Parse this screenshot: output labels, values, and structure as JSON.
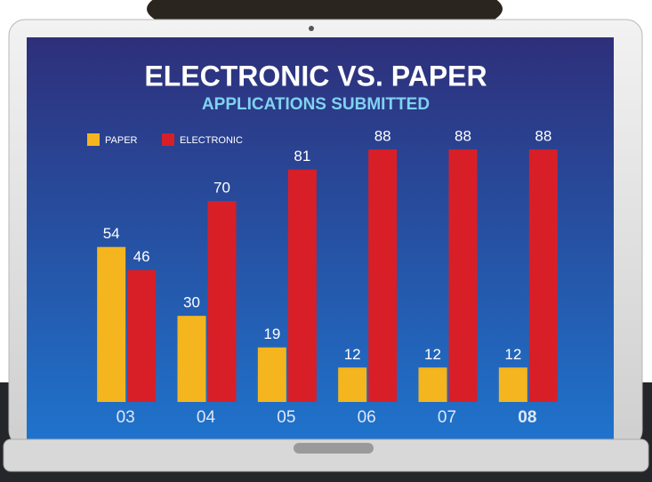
{
  "chart_data": {
    "type": "bar",
    "title": "ELECTRONIC VS. PAPER",
    "subtitle": "APPLICATIONS SUBMITTED",
    "categories": [
      "03",
      "04",
      "05",
      "06",
      "07",
      "08"
    ],
    "series": [
      {
        "name": "PAPER",
        "color": "#f4b51f",
        "values": [
          54,
          30,
          19,
          12,
          12,
          12
        ]
      },
      {
        "name": "ELECTRONIC",
        "color": "#d81f27",
        "values": [
          46,
          70,
          81,
          88,
          88,
          88
        ]
      }
    ]
  }
}
